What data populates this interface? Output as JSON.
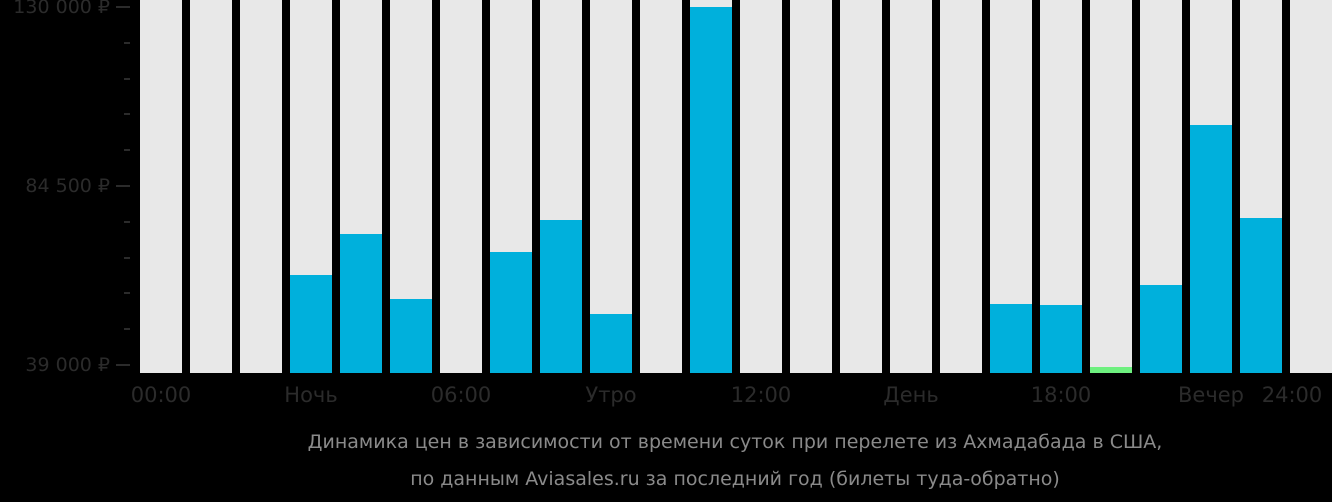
{
  "chart_data": {
    "type": "bar",
    "title": "Динамика цен в зависимости от времени суток при перелете из Ахмадабада в США, по данным Aviasales.ru за последний год (билеты туда-обратно)",
    "xlabel": "",
    "ylabel": "",
    "ylim": [
      37000,
      130000
    ],
    "y_ticks": [
      "130 000 ₽",
      "84 500 ₽",
      "39 000 ₽"
    ],
    "x_tick_labels": [
      "00:00",
      "Ночь",
      "06:00",
      "Утро",
      "12:00",
      "День",
      "18:00",
      "Вечер",
      "24:00"
    ],
    "categories": [
      "00",
      "01",
      "02",
      "03",
      "04",
      "05",
      "06",
      "07",
      "08",
      "09",
      "10",
      "11",
      "12",
      "13",
      "14",
      "15",
      "16",
      "17",
      "18",
      "19",
      "20",
      "21",
      "22",
      "23"
    ],
    "values": [
      null,
      null,
      null,
      61900,
      72300,
      55800,
      null,
      67700,
      75900,
      52000,
      null,
      130000,
      null,
      null,
      null,
      null,
      null,
      54500,
      54300,
      38500,
      59300,
      100000,
      76400,
      null
    ],
    "highlight": {
      "cheapest_index": 19,
      "color": "#6ef07f"
    },
    "bar_color": "#00b0dc",
    "empty_slot_color": "#e8e8e8",
    "grid": false,
    "legend": null
  },
  "caption": {
    "line1": "Динамика цен в зависимости от времени суток при перелете из Ахмадабада в США,",
    "line2": "по данным Aviasales.ru за последний год (билеты туда-обратно)"
  }
}
